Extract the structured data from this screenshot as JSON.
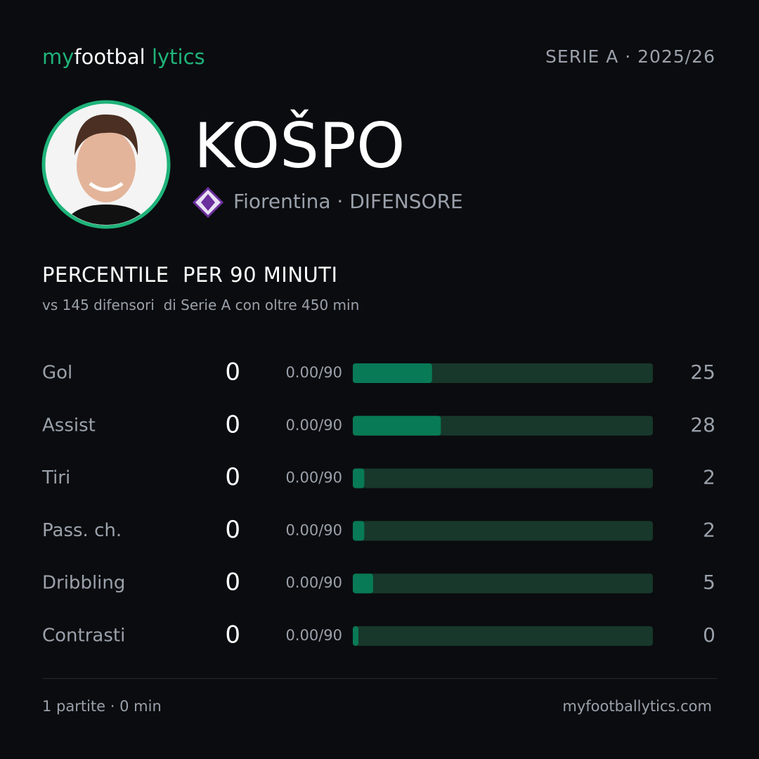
{
  "header": {
    "logo": [
      "my",
      "footbal",
      "lytics"
    ],
    "competition": "SERIE A · 2025/26"
  },
  "player": {
    "name": "KOŠPO",
    "team": "Fiorentina",
    "role": "· DIFENSORE"
  },
  "section": {
    "title": "PERCENTILE  PER 90 MINUTI",
    "subtitle": "vs 145 difensori  di Serie A con oltre 450 min"
  },
  "chart_data": {
    "type": "bar",
    "orientation": "horizontal",
    "categories": [
      "Gol",
      "Assist",
      "Tiri",
      "Pass. ch.",
      "Dribbling",
      "Contrasti"
    ],
    "totals": [
      0,
      0,
      0,
      0,
      0,
      0
    ],
    "per90": [
      "0.00/90",
      "0.00/90",
      "0.00/90",
      "0.00/90",
      "0.00/90",
      "0.00/90"
    ],
    "values": [
      25,
      28,
      2,
      2,
      5,
      0
    ],
    "xlim": [
      0,
      100
    ],
    "color": "#087a55",
    "track_color": "#17382b"
  },
  "footer": {
    "stats": "1 partite · 0 min",
    "site": "myfootballytics.com"
  }
}
